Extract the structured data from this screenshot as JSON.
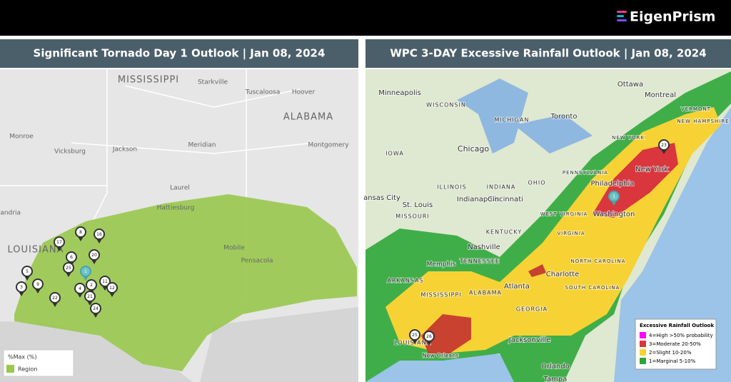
{
  "header": {
    "brand": "EigenPrism"
  },
  "panels": [
    {
      "title": "Significant Tornado Day 1 Outlook | Jan 08, 2024",
      "places": [
        "MISSISSIPPI",
        "Starkville",
        "Tuscaloosa",
        "Hoover",
        "ALABAMA",
        "Monroe",
        "Vicksburg",
        "Jackson",
        "Meridian",
        "Montgomery",
        "Laurel",
        "Hattiesburg",
        "LOUISIANA",
        "Mobile",
        "Pensacola",
        "xandria"
      ],
      "markers": [
        "8",
        "16",
        "17",
        "6",
        "20",
        "25",
        "1",
        "5",
        "3",
        "9",
        "22",
        "2",
        "21",
        "11",
        "12",
        "24",
        "4"
      ],
      "legend": {
        "title": "%Max (%)",
        "items": [
          "Region"
        ]
      }
    },
    {
      "title": "WPC 3-DAY Excessive Rainfall Outlook  | Jan 08, 2024",
      "places": [
        "Minneapolis",
        "WISCONSIN",
        "MICHIGAN",
        "Toronto",
        "Ottawa",
        "Montreal",
        "VERMONT",
        "NEW HAMPSHIRE",
        "NEW YORK",
        "IOWA",
        "Chicago",
        "PENNSYLVANIA",
        "New York",
        "Philadelphia",
        "ILLINOIS",
        "INDIANA",
        "OHIO",
        "Indianapolis",
        "Cincinnati",
        "ansas City",
        "St. Louis",
        "MISSOURI",
        "WEST VIRGINIA",
        "Washington",
        "KENTUCKY",
        "VIRGINIA",
        "Nashville",
        "TENNESSEE",
        "Memphis",
        "NORTH CAROLINA",
        "Charlotte",
        "ARKANSAS",
        "SOUTH CAROLINA",
        "Atlanta",
        "MISSISSIPPI",
        "ALABAMA",
        "GEORGIA",
        "LOUISIANA",
        "New Orleans",
        "Jacksonville",
        "Orlando",
        "Tampa"
      ],
      "markers": [
        "1",
        "23",
        "25",
        "26"
      ],
      "legend": {
        "title": "Excessive Rainfall Outlook",
        "items": [
          "4=High >50% probability",
          "3=Moderate 20-50%",
          "2=Slight 10-20%",
          "1=Marginal 5-10%"
        ]
      }
    }
  ]
}
